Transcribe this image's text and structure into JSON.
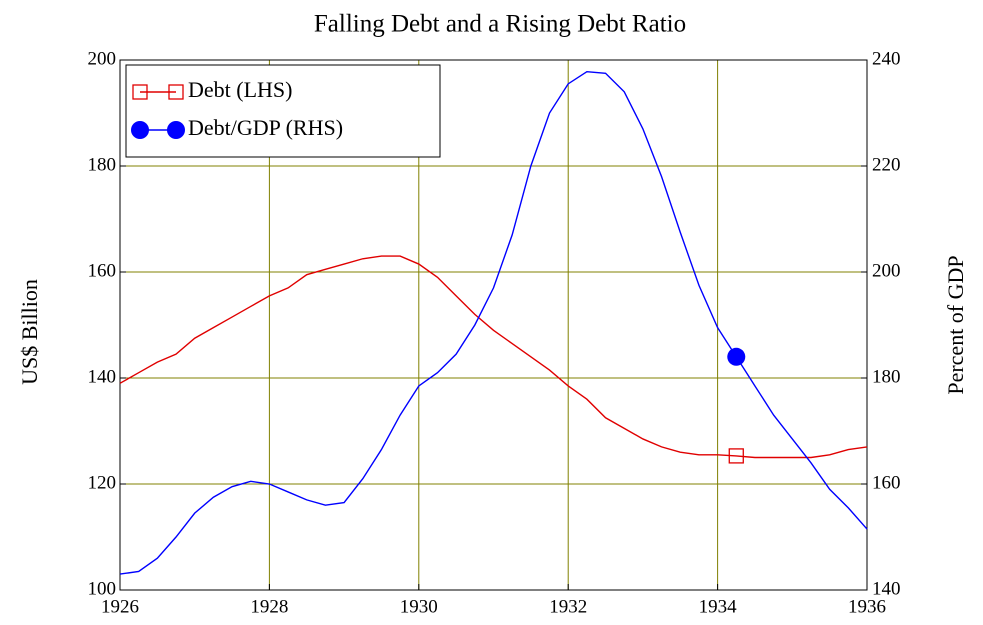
{
  "chart_data": {
    "type": "line",
    "title": "Falling Debt and a Rising Debt Ratio",
    "ylabel": "US$ Billion",
    "y2label": "Percent of GDP",
    "x": [
      1926,
      1926.25,
      1926.5,
      1926.75,
      1927,
      1927.25,
      1927.5,
      1927.75,
      1928,
      1928.25,
      1928.5,
      1928.75,
      1929,
      1929.25,
      1929.5,
      1929.75,
      1930,
      1930.25,
      1930.5,
      1930.75,
      1931,
      1931.25,
      1931.5,
      1931.75,
      1932,
      1932.25,
      1932.5,
      1932.75,
      1933,
      1933.25,
      1933.5,
      1933.75,
      1934,
      1934.25,
      1934.5,
      1934.75,
      1935,
      1935.25,
      1935.5,
      1935.75,
      1936
    ],
    "series": [
      {
        "name": "Debt (LHS)",
        "color": "#e00000",
        "marker": "square",
        "values": [
          139,
          141,
          143,
          144.5,
          147.5,
          149.5,
          151.5,
          153.5,
          155.5,
          157,
          159.5,
          160.5,
          161.5,
          162.5,
          163,
          163,
          161.5,
          159,
          155.5,
          152,
          149,
          146.5,
          144,
          141.5,
          138.5,
          136,
          132.5,
          130.5,
          128.5,
          127,
          126,
          125.5,
          125.5,
          125.3,
          125,
          125,
          125,
          125,
          125.5,
          126.5,
          127
        ]
      },
      {
        "name": "Debt/GDP (RHS)",
        "color": "#0000ff",
        "marker": "circle",
        "axis": "y2",
        "values": [
          143,
          143.5,
          146,
          150,
          154.5,
          157.5,
          159.5,
          160.5,
          160,
          158.5,
          157,
          156,
          156.5,
          161,
          166.5,
          173,
          178.5,
          181,
          184.5,
          190,
          197,
          207,
          220,
          230,
          235.5,
          237.8,
          237.5,
          234,
          227,
          218,
          207.5,
          197.5,
          189.5,
          184,
          178.5,
          173,
          168.5,
          164,
          159,
          155.5,
          151.5
        ]
      }
    ],
    "xlim": [
      1926,
      1936
    ],
    "xticks": [
      1926,
      1928,
      1930,
      1932,
      1934,
      1936
    ],
    "ylim": [
      100,
      200
    ],
    "yticks": [
      100,
      120,
      140,
      160,
      180,
      200
    ],
    "y2lim": [
      140,
      240
    ],
    "y2ticks": [
      140,
      160,
      180,
      200,
      220,
      240
    ],
    "grid": true,
    "legend": "upper left"
  }
}
